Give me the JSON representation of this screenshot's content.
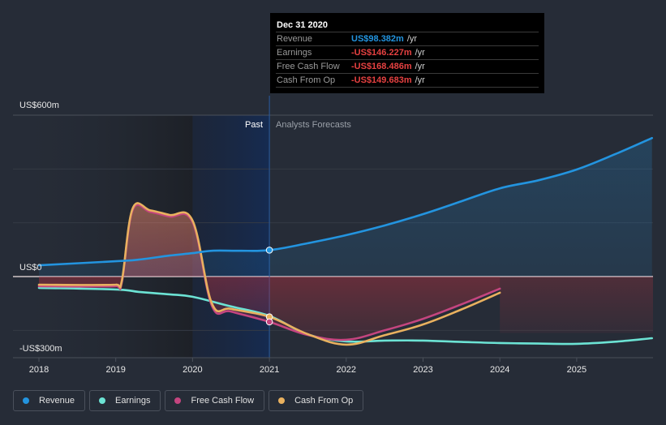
{
  "tooltip": {
    "date": "Dec 31 2020",
    "rows": [
      {
        "label": "Revenue",
        "value": "US$98.382m",
        "unit": "/yr",
        "color": "#2394df"
      },
      {
        "label": "Earnings",
        "value": "-US$146.227m",
        "unit": "/yr",
        "color": "#e64141"
      },
      {
        "label": "Free Cash Flow",
        "value": "-US$168.486m",
        "unit": "/yr",
        "color": "#e64141"
      },
      {
        "label": "Cash From Op",
        "value": "-US$149.683m",
        "unit": "/yr",
        "color": "#e64141"
      }
    ]
  },
  "regions": {
    "past_label": "Past",
    "forecast_label": "Analysts Forecasts"
  },
  "legend": [
    {
      "label": "Revenue",
      "color": "#2394df"
    },
    {
      "label": "Earnings",
      "color": "#6ce3d4"
    },
    {
      "label": "Free Cash Flow",
      "color": "#c4457f"
    },
    {
      "label": "Cash From Op",
      "color": "#e9b15f"
    }
  ],
  "chart_data": {
    "type": "line",
    "title": "",
    "xlabel": "",
    "ylabel": "",
    "x_unit": "year",
    "xlim": [
      2017.75,
      2025.98
    ],
    "ylim": [
      -300,
      600
    ],
    "y_tick_labels": [
      {
        "value": 600,
        "label": "US$600m"
      },
      {
        "value": 0,
        "label": "US$0"
      },
      {
        "value": -300,
        "label": "-US$300m"
      }
    ],
    "gridlines": [
      600,
      400,
      200,
      0,
      -200
    ],
    "x_ticks": [
      2018,
      2019,
      2020,
      2021,
      2022,
      2023,
      2024,
      2025
    ],
    "past_forecast_divider": 2021.0,
    "highlight_start": 2020.0,
    "legend_position": "bottom-left",
    "series": [
      {
        "name": "Revenue",
        "color": "#2394df",
        "points": [
          [
            2018,
            42
          ],
          [
            2019,
            57
          ],
          [
            2019.3,
            63
          ],
          [
            2019.7,
            78
          ],
          [
            2020,
            87
          ],
          [
            2020.25,
            96
          ],
          [
            2020.6,
            96
          ],
          [
            2021,
            98.382
          ],
          [
            2021.5,
            124
          ],
          [
            2022,
            154
          ],
          [
            2022.5,
            190
          ],
          [
            2023,
            232
          ],
          [
            2023.5,
            280
          ],
          [
            2024,
            328
          ],
          [
            2024.5,
            358
          ],
          [
            2025,
            398
          ],
          [
            2025.5,
            455
          ],
          [
            2025.98,
            515
          ]
        ]
      },
      {
        "name": "Earnings",
        "color": "#6ce3d4",
        "points": [
          [
            2018,
            -42
          ],
          [
            2019,
            -48
          ],
          [
            2019.3,
            -57
          ],
          [
            2019.7,
            -66
          ],
          [
            2020,
            -75
          ],
          [
            2020.5,
            -111
          ],
          [
            2021,
            -146.227
          ],
          [
            2021.5,
            -215
          ],
          [
            2022,
            -241
          ],
          [
            2022.5,
            -238
          ],
          [
            2023,
            -238
          ],
          [
            2023.5,
            -243
          ],
          [
            2024,
            -247
          ],
          [
            2024.5,
            -249
          ],
          [
            2025,
            -250
          ],
          [
            2025.5,
            -242
          ],
          [
            2025.98,
            -229
          ]
        ]
      },
      {
        "name": "Free Cash Flow",
        "color": "#c4457f",
        "points": [
          [
            2018,
            -36
          ],
          [
            2019,
            -36
          ],
          [
            2019.08,
            -20
          ],
          [
            2019.22,
            247
          ],
          [
            2019.45,
            240
          ],
          [
            2019.7,
            223
          ],
          [
            2020,
            202
          ],
          [
            2020.25,
            -108
          ],
          [
            2020.5,
            -130
          ],
          [
            2021,
            -168.486
          ],
          [
            2021.5,
            -217
          ],
          [
            2022,
            -235
          ],
          [
            2022.5,
            -200
          ],
          [
            2023,
            -157
          ],
          [
            2023.5,
            -103
          ],
          [
            2024,
            -45
          ]
        ]
      },
      {
        "name": "Cash From Op",
        "color": "#e9b15f",
        "points": [
          [
            2018,
            -30
          ],
          [
            2019,
            -30
          ],
          [
            2019.08,
            -14
          ],
          [
            2019.22,
            253
          ],
          [
            2019.45,
            246
          ],
          [
            2019.7,
            229
          ],
          [
            2020,
            208
          ],
          [
            2020.25,
            -99
          ],
          [
            2020.5,
            -120
          ],
          [
            2021,
            -149.683
          ],
          [
            2021.5,
            -214
          ],
          [
            2022,
            -253
          ],
          [
            2022.5,
            -218
          ],
          [
            2023,
            -178
          ],
          [
            2023.5,
            -122
          ],
          [
            2024,
            -60
          ]
        ]
      }
    ]
  }
}
